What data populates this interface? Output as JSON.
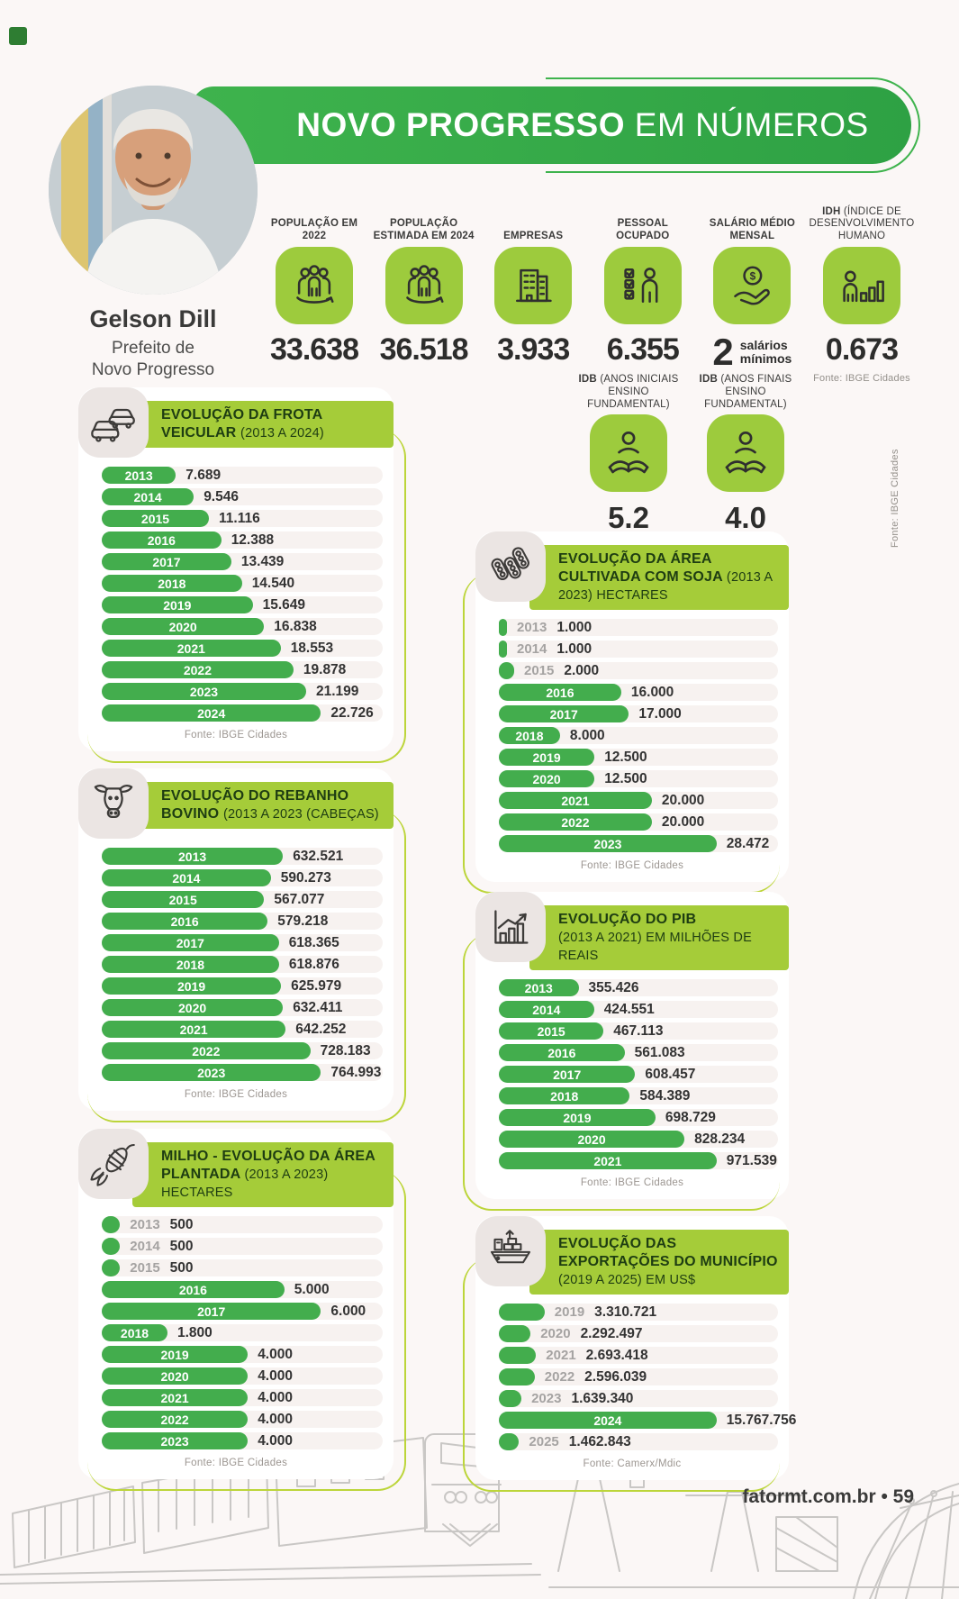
{
  "page": {
    "footer": "fatormt.com.br • 59"
  },
  "colors": {
    "bar_green": "#43AD4D",
    "ribbon_green": "#A5CC39",
    "tile_green": "#9DCB3D",
    "banner_green": "#3EB34D",
    "accent_outline": "#BCD53A",
    "dark_green_text": "#1E3D12"
  },
  "header": {
    "title_bold": "NOVO PROGRESSO",
    "title_light": " EM NÚMEROS",
    "person": {
      "name": "Gelson Dill",
      "role1": "Prefeito de",
      "role2": "Novo Progresso"
    },
    "stats": [
      {
        "label": "POPULAÇÃO EM 2022",
        "value": "33.638"
      },
      {
        "label": "POPULAÇÃO ESTIMADA EM 2024",
        "value": "36.518"
      },
      {
        "label": "EMPRESAS",
        "value": "3.933"
      },
      {
        "label": "PESSOAL OCUPADO",
        "value": "6.355"
      },
      {
        "label": "SALÁRIO MÉDIO MENSAL",
        "value": "2",
        "suffix1": "salários",
        "suffix2": "mínimos"
      },
      {
        "label_bold": "IDH",
        "label_rest": " (ÍNDICE DE DESENVOLVIMENTO HUMANO",
        "value": "0.673",
        "fonte": "Fonte: IBGE Cidades"
      }
    ],
    "idb": [
      {
        "label_bold": "IDB",
        "label_rest": " (ANOS INICIAIS ENSINO FUNDAMENTAL)",
        "value": "5.2"
      },
      {
        "label_bold": "IDB",
        "label_rest": " (ANOS FINAIS ENSINO FUNDAMENTAL)",
        "value": "4.0"
      }
    ],
    "fonte_vertical": "Fonte: IBGE Cidades"
  },
  "chart_data": [
    {
      "type": "bar",
      "orientation": "horizontal",
      "title": "EVOLUÇÃO DA FROTA VEICULAR",
      "note": "(2013 A 2024)",
      "fonte": "Fonte: IBGE Cidades",
      "icon": "cars-icon",
      "categories": [
        "2013",
        "2014",
        "2015",
        "2016",
        "2017",
        "2018",
        "2019",
        "2020",
        "2021",
        "2022",
        "2023",
        "2024"
      ],
      "values": [
        7689,
        9546,
        11116,
        12388,
        13439,
        14540,
        15649,
        16838,
        18553,
        19878,
        21199,
        22726
      ],
      "labels": [
        "7.689",
        "9.546",
        "11.116",
        "12.388",
        "13.439",
        "14.540",
        "15.649",
        "16.838",
        "18.553",
        "19.878",
        "21.199",
        "22.726"
      ]
    },
    {
      "type": "bar",
      "orientation": "horizontal",
      "title": "EVOLUÇÃO DO REBANHO BOVINO",
      "note": "(2013 A 2023 (CABEÇAS)",
      "fonte": "Fonte: IBGE Cidades",
      "icon": "cow-icon",
      "categories": [
        "2013",
        "2014",
        "2015",
        "2016",
        "2017",
        "2018",
        "2019",
        "2020",
        "2021",
        "2022",
        "2023"
      ],
      "values": [
        632521,
        590273,
        567077,
        579218,
        618365,
        618876,
        625979,
        632411,
        642252,
        728183,
        764993
      ],
      "labels": [
        "632.521",
        "590.273",
        "567.077",
        "579.218",
        "618.365",
        "618.876",
        "625.979",
        "632.411",
        "642.252",
        "728.183",
        "764.993"
      ]
    },
    {
      "type": "bar",
      "orientation": "horizontal",
      "title": "MILHO - EVOLUÇÃO DA ÁREA PLANTADA",
      "note": "(2013 A 2023) HECTARES",
      "fonte": "Fonte: IBGE Cidades",
      "icon": "corn-icon",
      "categories": [
        "2013",
        "2014",
        "2015",
        "2016",
        "2017",
        "2018",
        "2019",
        "2020",
        "2021",
        "2022",
        "2023"
      ],
      "values": [
        500,
        500,
        500,
        5000,
        6000,
        1800,
        4000,
        4000,
        4000,
        4000,
        4000
      ],
      "labels": [
        "500",
        "500",
        "500",
        "5.000",
        "6.000",
        "1.800",
        "4.000",
        "4.000",
        "4.000",
        "4.000",
        "4.000"
      ]
    },
    {
      "type": "bar",
      "orientation": "horizontal",
      "title": "EVOLUÇÃO DA ÁREA CULTIVADA COM SOJA",
      "note": "(2013 A 2023) HECTARES",
      "fonte": "Fonte: IBGE Cidades",
      "icon": "soy-icon",
      "categories": [
        "2013",
        "2014",
        "2015",
        "2016",
        "2017",
        "2018",
        "2019",
        "2020",
        "2021",
        "2022",
        "2023"
      ],
      "values": [
        1000,
        1000,
        2000,
        16000,
        17000,
        8000,
        12500,
        12500,
        20000,
        20000,
        28472
      ],
      "labels": [
        "1.000",
        "1.000",
        "2.000",
        "16.000",
        "17.000",
        "8.000",
        "12.500",
        "12.500",
        "20.000",
        "20.000",
        "28.472"
      ]
    },
    {
      "type": "bar",
      "orientation": "horizontal",
      "title": "EVOLUÇÃO DO PIB",
      "note": "(2013 A 2021) EM MILHÕES DE REAIS",
      "fonte": "Fonte: IBGE Cidades",
      "icon": "chart-growth-icon",
      "categories": [
        "2013",
        "2014",
        "2015",
        "2016",
        "2017",
        "2018",
        "2019",
        "2020",
        "2021"
      ],
      "values": [
        355426,
        424551,
        467113,
        561083,
        608457,
        584389,
        698729,
        828234,
        971539
      ],
      "labels": [
        "355.426",
        "424.551",
        "467.113",
        "561.083",
        "608.457",
        "584.389",
        "698.729",
        "828.234",
        "971.539"
      ]
    },
    {
      "type": "bar",
      "orientation": "horizontal",
      "title": "EVOLUÇÃO DAS EXPORTAÇÕES DO MUNICÍPIO",
      "note": "(2019 A 2025) EM US$",
      "fonte": "Fonte: Camerx/Mdic",
      "icon": "ship-icon",
      "categories": [
        "2019",
        "2020",
        "2021",
        "2022",
        "2023",
        "2024",
        "2025"
      ],
      "values": [
        3310721,
        2292497,
        2693418,
        2596039,
        1639340,
        15767756,
        1462843
      ],
      "labels": [
        "3.310.721",
        "2.292.497",
        "2.693.418",
        "2.596.039",
        "1.639.340",
        "15.767.756",
        "1.462.843"
      ]
    }
  ]
}
